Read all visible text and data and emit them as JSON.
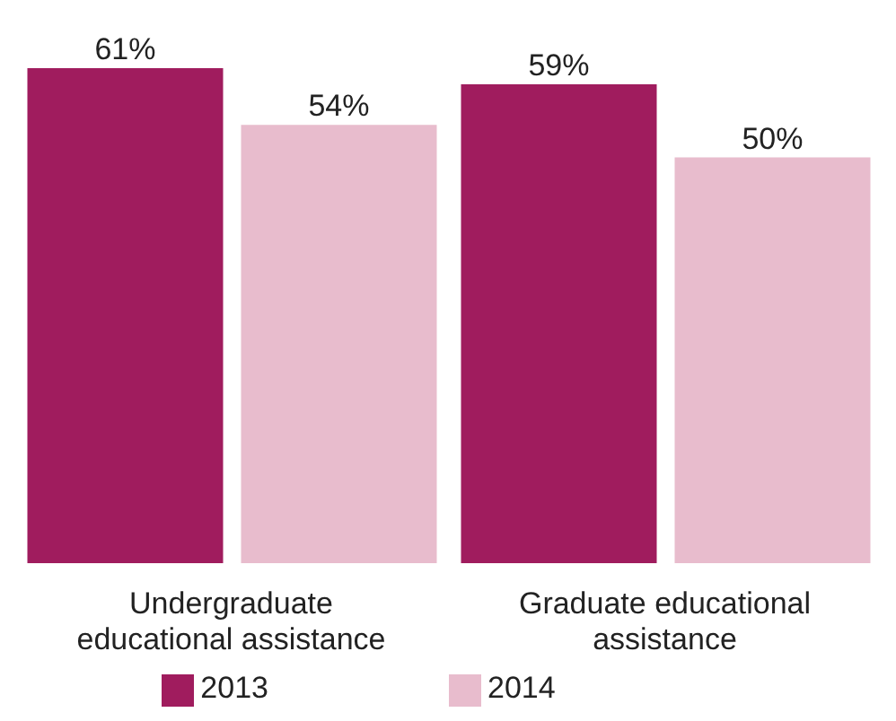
{
  "chart_data": {
    "type": "bar",
    "categories": [
      "Undergraduate educational assistance",
      "Graduate educational assistance"
    ],
    "series": [
      {
        "name": "2013",
        "color": "#a01c5e",
        "values": [
          61,
          59
        ],
        "value_labels": [
          "61%",
          "59%"
        ]
      },
      {
        "name": "2014",
        "color": "#e8bccd",
        "values": [
          54,
          50
        ],
        "value_labels": [
          "54%",
          "50%"
        ]
      }
    ],
    "legend": "bottom"
  }
}
